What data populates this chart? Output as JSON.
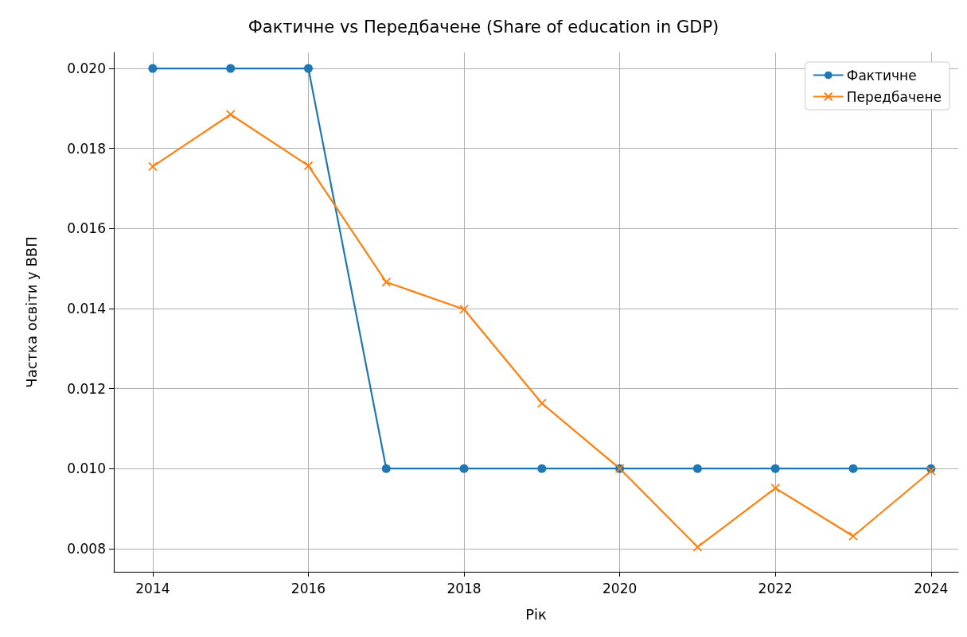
{
  "chart_data": {
    "type": "line",
    "title": "Фактичне vs Передбачене (Share of education in GDP)",
    "xlabel": "Рік",
    "ylabel": "Частка освіти у ВВП",
    "x": [
      2014,
      2015,
      2016,
      2017,
      2018,
      2019,
      2020,
      2021,
      2022,
      2023,
      2024
    ],
    "series": [
      {
        "name": "Фактичне",
        "color": "#1f77b4",
        "marker": "circle",
        "values": [
          0.02,
          0.02,
          0.02,
          0.01,
          0.01,
          0.01,
          0.01,
          0.01,
          0.01,
          0.01,
          0.01
        ]
      },
      {
        "name": "Передбачене",
        "color": "#ff7f0e",
        "marker": "cross",
        "values": [
          0.01755,
          0.01885,
          0.01757,
          0.01466,
          0.01398,
          0.01163,
          0.01,
          0.00804,
          0.00951,
          0.00831,
          0.00994
        ]
      }
    ],
    "xlim": [
      2013.5,
      2024.35
    ],
    "ylim": [
      0.00742,
      0.0204
    ],
    "xticks": [
      2014,
      2016,
      2018,
      2020,
      2022,
      2024
    ],
    "yticks": [
      {
        "value": 0.008,
        "label": "0.008"
      },
      {
        "value": 0.01,
        "label": "0.010"
      },
      {
        "value": 0.012,
        "label": "0.012"
      },
      {
        "value": 0.014,
        "label": "0.014"
      },
      {
        "value": 0.016,
        "label": "0.016"
      },
      {
        "value": 0.018,
        "label": "0.018"
      },
      {
        "value": 0.02,
        "label": "0.020"
      }
    ],
    "grid": true,
    "legend": "top right",
    "line_style": "solid"
  }
}
